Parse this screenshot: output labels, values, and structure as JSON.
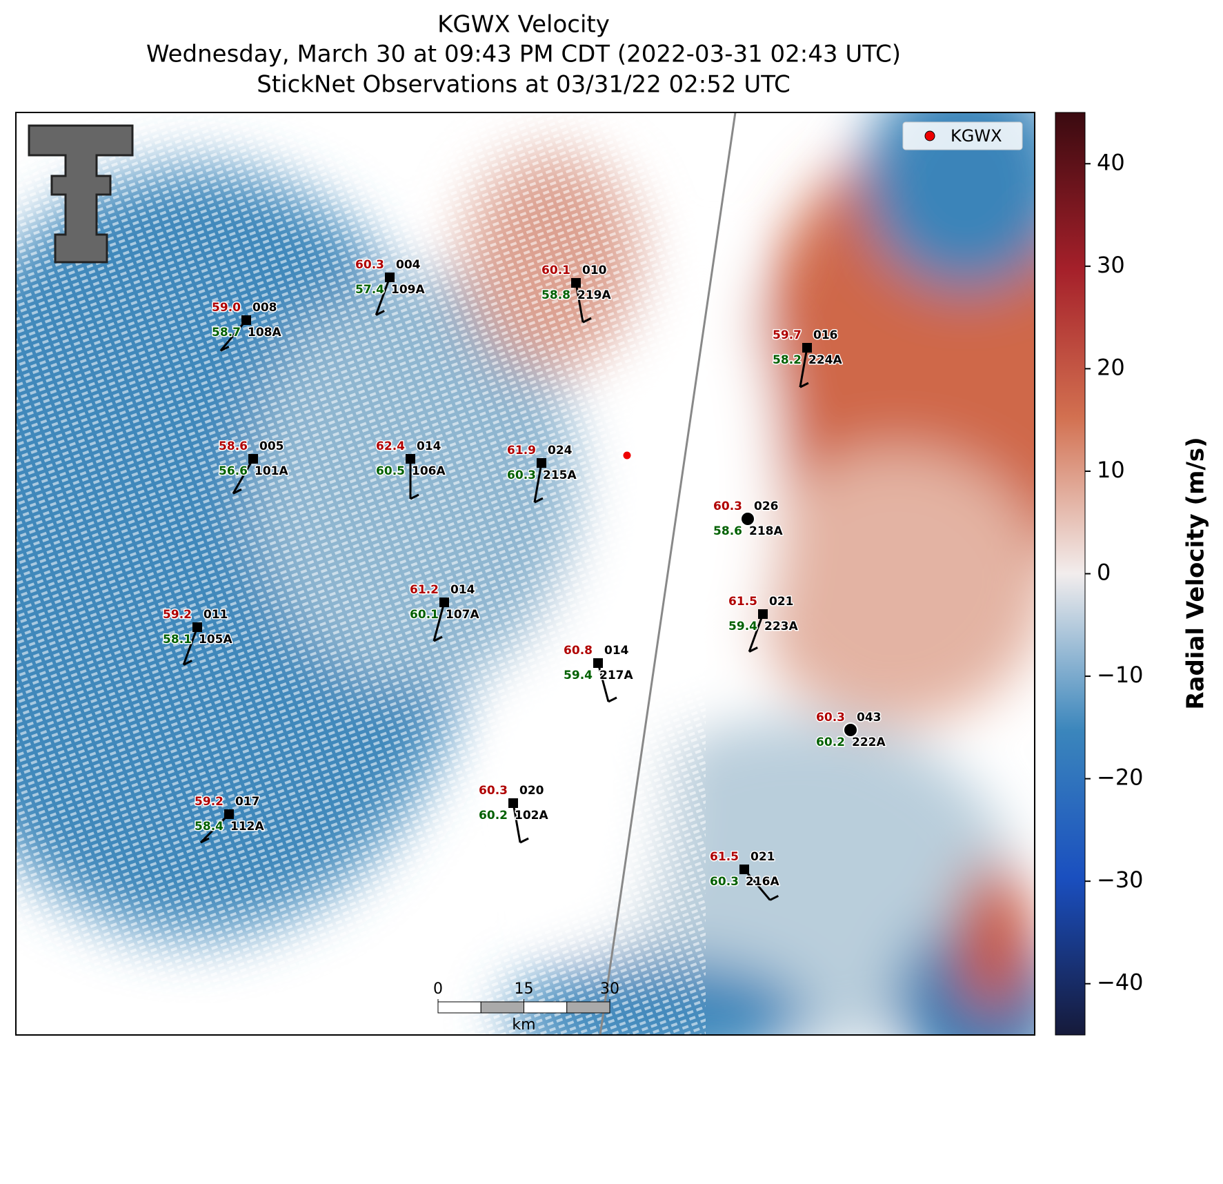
{
  "header": {
    "title": "KGWX Velocity",
    "subtitle": "Wednesday, March 30 at 09:43 PM CDT (2022-03-31 02:43 UTC)",
    "subtitle2": "StickNet Observations at 03/31/22 02:52 UTC"
  },
  "legend": {
    "label": "KGWX"
  },
  "colorbar": {
    "label": "Radial Velocity (m/s)",
    "ylim": [
      -45,
      45
    ],
    "yticks": [
      {
        "value": -40,
        "label": "−40"
      },
      {
        "value": -30,
        "label": "−30"
      },
      {
        "value": -20,
        "label": "−20"
      },
      {
        "value": -10,
        "label": "−10"
      },
      0,
      10,
      20,
      30,
      40
    ]
  },
  "scale_bar": {
    "ticks": [
      0,
      15,
      30
    ],
    "unit": "km"
  },
  "stations": [
    {
      "code": "004",
      "id": "109A",
      "temp": "60.3",
      "dew": "57.4"
    },
    {
      "code": "010",
      "id": "219A",
      "temp": "60.1",
      "dew": "58.8"
    },
    {
      "code": "008",
      "id": "108A",
      "temp": "59.0",
      "dew": "58.7"
    },
    {
      "code": "016",
      "id": "224A",
      "temp": "59.7",
      "dew": "58.2"
    },
    {
      "code": "005",
      "id": "101A",
      "temp": "58.6",
      "dew": "56.6"
    },
    {
      "code": "014",
      "id": "106A",
      "temp": "62.4",
      "dew": "60.5"
    },
    {
      "code": "024",
      "id": "215A",
      "temp": "61.9",
      "dew": "60.3"
    },
    {
      "code": "026",
      "id": "218A",
      "temp": "60.3",
      "dew": "58.6"
    },
    {
      "code": "014",
      "id": "107A",
      "temp": "61.2",
      "dew": "60.1"
    },
    {
      "code": "011",
      "id": "105A",
      "temp": "59.2",
      "dew": "58.1"
    },
    {
      "code": "021",
      "id": "223A",
      "temp": "61.5",
      "dew": "59.4"
    },
    {
      "code": "014",
      "id": "217A",
      "temp": "60.8",
      "dew": "59.4"
    },
    {
      "code": "043",
      "id": "222A",
      "temp": "60.3",
      "dew": "60.2"
    },
    {
      "code": "020",
      "id": "102A",
      "temp": "60.3",
      "dew": "60.2"
    },
    {
      "code": "017",
      "id": "112A",
      "temp": "59.2",
      "dew": "58.4"
    },
    {
      "code": "021",
      "id": "216A",
      "temp": "61.5",
      "dew": "60.3"
    }
  ]
}
